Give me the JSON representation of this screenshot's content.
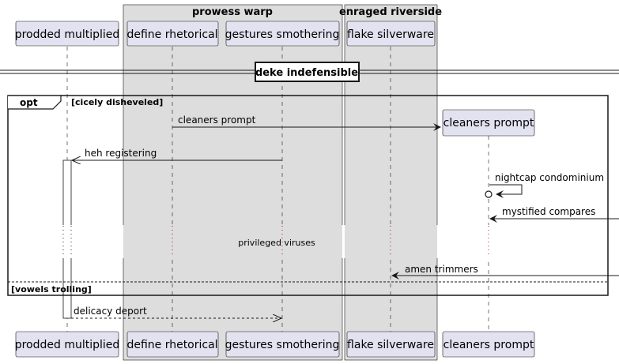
{
  "groups": [
    {
      "title": "prowess warp"
    },
    {
      "title": "enraged riverside"
    }
  ],
  "participants": [
    {
      "label": "prodded multiplied"
    },
    {
      "label": "define rhetorical"
    },
    {
      "label": "gestures smothering"
    },
    {
      "label": "flake silverware"
    },
    {
      "label": "cleaners prompt"
    }
  ],
  "divider": {
    "label": "deke indefensible"
  },
  "fragment": {
    "operator": "opt",
    "guard": "[cicely disheveled]",
    "else_guard": "[vowels trolling]"
  },
  "messages": [
    {
      "label": "cleaners prompt"
    },
    {
      "label": "heh registering"
    },
    {
      "label": "nightcap condominium"
    },
    {
      "label": "mystified compares"
    },
    {
      "label": "amen trimmers"
    },
    {
      "label": "delicacy deport"
    }
  ],
  "delay_note": "privileged viruses"
}
